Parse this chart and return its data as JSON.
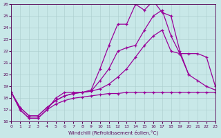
{
  "xlabel": "Windchill (Refroidissement éolien,°C)",
  "xlim": [
    0,
    23
  ],
  "ylim": [
    16,
    26
  ],
  "xticks": [
    0,
    1,
    2,
    3,
    4,
    5,
    6,
    7,
    8,
    9,
    10,
    11,
    12,
    13,
    14,
    15,
    16,
    17,
    18,
    19,
    20,
    21,
    22,
    23
  ],
  "yticks": [
    16,
    17,
    18,
    19,
    20,
    21,
    22,
    23,
    24,
    25,
    26
  ],
  "bg_color": "#c8e8e8",
  "line_color": "#990099",
  "line1_y": [
    18.5,
    17.0,
    16.3,
    16.3,
    17.0,
    17.5,
    17.8,
    18.0,
    18.1,
    18.2,
    18.3,
    18.4,
    18.4,
    18.5,
    18.5,
    18.5,
    18.5,
    18.5,
    18.5,
    18.5,
    18.5,
    18.5,
    18.5,
    18.5
  ],
  "line2_y": [
    18.5,
    17.2,
    16.5,
    16.5,
    17.2,
    17.8,
    18.2,
    18.4,
    18.5,
    18.6,
    18.8,
    19.2,
    19.8,
    20.5,
    21.5,
    22.5,
    23.3,
    23.8,
    22.0,
    21.8,
    21.8,
    21.8,
    21.5,
    19.0
  ],
  "line3_y": [
    18.5,
    17.2,
    16.5,
    16.5,
    17.2,
    17.8,
    18.2,
    18.4,
    18.5,
    18.6,
    19.5,
    20.5,
    22.0,
    22.3,
    22.5,
    23.8,
    25.0,
    25.5,
    23.3,
    21.8,
    20.0,
    19.5,
    19.0,
    18.7
  ],
  "line4_y": [
    18.5,
    17.0,
    16.3,
    16.3,
    17.0,
    18.0,
    18.5,
    18.5,
    18.5,
    18.7,
    20.5,
    22.5,
    24.3,
    24.3,
    26.0,
    25.5,
    26.3,
    25.3,
    25.0,
    22.0,
    20.0,
    null,
    null,
    null
  ]
}
